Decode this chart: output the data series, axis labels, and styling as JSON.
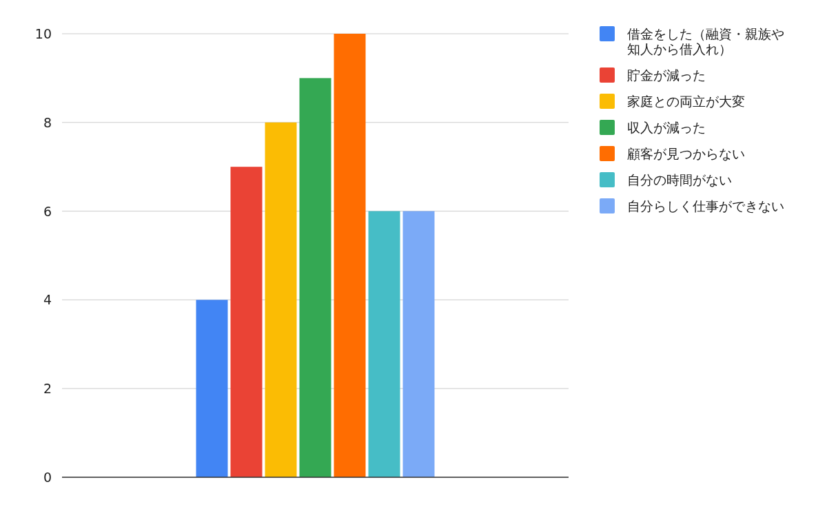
{
  "chart_data": {
    "type": "bar",
    "categories": [
      null
    ],
    "ylim": [
      0,
      10
    ],
    "yticks": [
      0,
      2,
      4,
      6,
      8,
      10
    ],
    "grid": "y",
    "legend": "right",
    "series": [
      {
        "name": "借金をした（融資・親族や知人から借入れ）",
        "color": "#4285f4",
        "values": [
          4
        ]
      },
      {
        "name": "貯金が減った",
        "color": "#ea4335",
        "values": [
          7
        ]
      },
      {
        "name": "家庭との両立が大変",
        "color": "#fbbc04",
        "values": [
          8
        ]
      },
      {
        "name": "収入が減った",
        "color": "#34a853",
        "values": [
          9
        ]
      },
      {
        "name": "顧客が見つからない",
        "color": "#ff6d01",
        "values": [
          10
        ]
      },
      {
        "name": "自分の時間がない",
        "color": "#46bdc6",
        "values": [
          6
        ]
      },
      {
        "name": "自分らしく仕事ができない",
        "color": "#7baaf7",
        "values": [
          6
        ]
      }
    ]
  }
}
